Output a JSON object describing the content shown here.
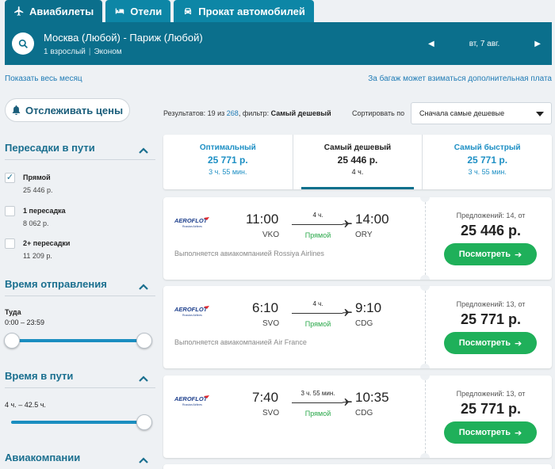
{
  "tabs": [
    {
      "label": "Авиабилеты",
      "icon": "airplane-icon",
      "active": true
    },
    {
      "label": "Отели",
      "icon": "bed-icon",
      "active": false
    },
    {
      "label": "Прокат автомобилей",
      "icon": "car-icon",
      "active": false
    }
  ],
  "search": {
    "route": "Москва (Любой) - Париж (Любой)",
    "passengers": "1 взрослый",
    "cabin": "Эконом",
    "date": "вт, 7 авг."
  },
  "links": {
    "show_month": "Показать весь месяц",
    "baggage_note": "За багаж может взиматься дополнительная плата"
  },
  "sidebar": {
    "track_label": "Отслеживать цены",
    "stops_title": "Пересадки в пути",
    "stops": [
      {
        "label": "Прямой",
        "price": "25 446 р.",
        "checked": true
      },
      {
        "label": "1 пересадка",
        "price": "8 062 р.",
        "checked": false
      },
      {
        "label": "2+ пересадки",
        "price": "11 209 р.",
        "checked": false
      }
    ],
    "departure_title": "Время отправления",
    "departure_sub": "Туда",
    "departure_range": "0:00 – 23:59",
    "duration_title": "Время в пути",
    "duration_range": "4 ч. – 42.5 ч.",
    "airlines_title": "Авиакомпании"
  },
  "results": {
    "prefix": "Результатов: 19 из ",
    "total": "268",
    "filter_prefix": ", фильтр: ",
    "filter": "Самый дешевый",
    "sort_label": "Сортировать по",
    "sort_value": "Сначала самые дешевые"
  },
  "sort_tabs": [
    {
      "title": "Оптимальный",
      "price": "25 771 р.",
      "duration": "3 ч. 55 мин.",
      "active": false
    },
    {
      "title": "Самый дешевый",
      "price": "25 446 р.",
      "duration": "4 ч.",
      "active": true
    },
    {
      "title": "Самый быстрый",
      "price": "25 771 р.",
      "duration": "3 ч. 55 мин.",
      "active": false
    }
  ],
  "flights": [
    {
      "dep_time": "11:00",
      "dep_code": "VKO",
      "arr_time": "14:00",
      "arr_code": "ORY",
      "duration": "4 ч.",
      "stops": "Прямой",
      "operator": "Выполняется авиакомпанией Rossiya Airlines",
      "offers": "Предложений: 14, от",
      "price": "25 446 р.",
      "button": "Посмотреть"
    },
    {
      "dep_time": "6:10",
      "dep_code": "SVO",
      "arr_time": "9:10",
      "arr_code": "CDG",
      "duration": "4 ч.",
      "stops": "Прямой",
      "operator": "Выполняется авиакомпанией Air France",
      "offers": "Предложений: 13, от",
      "price": "25 771 р.",
      "button": "Посмотреть"
    },
    {
      "dep_time": "7:40",
      "dep_code": "SVO",
      "arr_time": "10:35",
      "arr_code": "CDG",
      "duration": "3 ч. 55 мин.",
      "stops": "Прямой",
      "operator": "",
      "offers": "Предложений: 13, от",
      "price": "25 771 р.",
      "button": "Посмотреть"
    }
  ],
  "logo": {
    "text": "AEROFLOT",
    "subtext": "Russian Airlines"
  },
  "colors": {
    "brand": "#0b6f8c",
    "tab": "#0d86a6",
    "link": "#1f7bb5",
    "cta": "#1fb05a",
    "direct": "#2aa84a"
  }
}
